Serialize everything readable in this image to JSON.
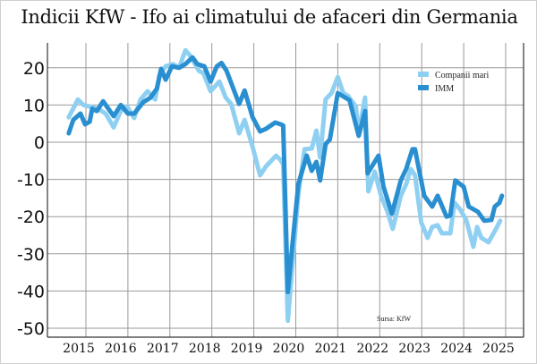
{
  "chart_data": {
    "type": "line",
    "title": "Indicii KfW - Ifo ai climatului de afaceri din Germania",
    "xlabel": "",
    "ylabel": "",
    "xlim": [
      2014.3,
      2025.4
    ],
    "ylim": [
      -52,
      27
    ],
    "x_ticks": [
      2015,
      2016,
      2017,
      2018,
      2019,
      2020,
      2021,
      2022,
      2023,
      2024,
      2025
    ],
    "x_tick_labels": [
      "2015",
      "2016",
      "2017",
      "2018",
      "2019",
      "2020",
      "2021",
      "2022",
      "2023",
      "2024",
      "2025"
    ],
    "y_ticks": [
      20,
      10,
      0,
      -10,
      -20,
      -30,
      -40,
      -50
    ],
    "y_tick_labels": [
      "20",
      "10",
      "0",
      "-10",
      "-20",
      "-30",
      "-40",
      "-50"
    ],
    "grid": true,
    "legend_position": "top-right",
    "source": "Sursa: KfW",
    "series": [
      {
        "name": "Companii mari",
        "color": "#8fd0f2",
        "points": [
          [
            2014.59,
            6.7
          ],
          [
            2014.81,
            11.5
          ],
          [
            2014.94,
            10
          ],
          [
            2015.09,
            9.6
          ],
          [
            2015.3,
            8.9
          ],
          [
            2015.47,
            7.7
          ],
          [
            2015.66,
            4
          ],
          [
            2015.83,
            8.4
          ],
          [
            2015.98,
            9.6
          ],
          [
            2016.15,
            6.5
          ],
          [
            2016.3,
            11.5
          ],
          [
            2016.47,
            13.7
          ],
          [
            2016.65,
            11.5
          ],
          [
            2016.75,
            18
          ],
          [
            2016.9,
            20.4
          ],
          [
            2017.07,
            21
          ],
          [
            2017.22,
            20
          ],
          [
            2017.37,
            24.7
          ],
          [
            2017.48,
            23.3
          ],
          [
            2017.69,
            19.2
          ],
          [
            2017.8,
            18.5
          ],
          [
            2017.97,
            13.7
          ],
          [
            2018.18,
            16.3
          ],
          [
            2018.33,
            12
          ],
          [
            2018.46,
            10.3
          ],
          [
            2018.65,
            2.4
          ],
          [
            2018.78,
            6
          ],
          [
            2018.97,
            -1.2
          ],
          [
            2019.15,
            -8.9
          ],
          [
            2019.29,
            -6.5
          ],
          [
            2019.53,
            -3.6
          ],
          [
            2019.64,
            -4.8
          ],
          [
            2019.7,
            -6
          ],
          [
            2019.81,
            -48
          ],
          [
            2020.06,
            -14
          ],
          [
            2020.21,
            -1.9
          ],
          [
            2020.38,
            -1.7
          ],
          [
            2020.49,
            3.1
          ],
          [
            2020.58,
            -4.1
          ],
          [
            2020.71,
            11.5
          ],
          [
            2020.85,
            13.2
          ],
          [
            2021.0,
            17.5
          ],
          [
            2021.13,
            13.2
          ],
          [
            2021.24,
            12.5
          ],
          [
            2021.43,
            9.6
          ],
          [
            2021.5,
            2.4
          ],
          [
            2021.65,
            12
          ],
          [
            2021.73,
            -13.2
          ],
          [
            2021.88,
            -7.9
          ],
          [
            2022.03,
            -14.4
          ],
          [
            2022.18,
            -18.5
          ],
          [
            2022.31,
            -23.3
          ],
          [
            2022.5,
            -14.4
          ],
          [
            2022.63,
            -11.3
          ],
          [
            2022.74,
            -7.2
          ],
          [
            2022.84,
            -8.9
          ],
          [
            2022.99,
            -21.6
          ],
          [
            2023.14,
            -25.7
          ],
          [
            2023.25,
            -22.8
          ],
          [
            2023.38,
            -22.3
          ],
          [
            2023.48,
            -24.5
          ],
          [
            2023.68,
            -24.5
          ],
          [
            2023.78,
            -16.3
          ],
          [
            2023.91,
            -18
          ],
          [
            2024.06,
            -20.9
          ],
          [
            2024.23,
            -28.1
          ],
          [
            2024.32,
            -22.8
          ],
          [
            2024.42,
            -25.7
          ],
          [
            2024.59,
            -26.9
          ],
          [
            2024.76,
            -23.5
          ],
          [
            2024.87,
            -21.1
          ]
        ]
      },
      {
        "name": "IMM",
        "color": "#2a8fd0",
        "points": [
          [
            2014.59,
            2.4
          ],
          [
            2014.7,
            6
          ],
          [
            2014.87,
            7.7
          ],
          [
            2014.98,
            4.8
          ],
          [
            2015.09,
            5.5
          ],
          [
            2015.15,
            9
          ],
          [
            2015.26,
            8.4
          ],
          [
            2015.41,
            11
          ],
          [
            2015.66,
            7
          ],
          [
            2015.83,
            10
          ],
          [
            2016.0,
            7.7
          ],
          [
            2016.15,
            7.7
          ],
          [
            2016.37,
            10.8
          ],
          [
            2016.54,
            12
          ],
          [
            2016.69,
            14.4
          ],
          [
            2016.79,
            19.7
          ],
          [
            2016.9,
            16.8
          ],
          [
            2017.05,
            20.4
          ],
          [
            2017.22,
            20
          ],
          [
            2017.37,
            21
          ],
          [
            2017.54,
            22.8
          ],
          [
            2017.65,
            21
          ],
          [
            2017.82,
            20.4
          ],
          [
            2017.97,
            16.3
          ],
          [
            2018.12,
            20.4
          ],
          [
            2018.23,
            21.3
          ],
          [
            2018.35,
            19.2
          ],
          [
            2018.65,
            10.3
          ],
          [
            2018.78,
            13.9
          ],
          [
            2018.97,
            6.7
          ],
          [
            2019.15,
            2.9
          ],
          [
            2019.29,
            3.6
          ],
          [
            2019.51,
            5.3
          ],
          [
            2019.64,
            4.8
          ],
          [
            2019.7,
            4.5
          ],
          [
            2019.81,
            -40.3
          ],
          [
            2020.06,
            -11.3
          ],
          [
            2020.26,
            -3.6
          ],
          [
            2020.38,
            -7.7
          ],
          [
            2020.49,
            -5.3
          ],
          [
            2020.58,
            -10.3
          ],
          [
            2020.71,
            -0.5
          ],
          [
            2020.81,
            0.7
          ],
          [
            2021.0,
            13.2
          ],
          [
            2021.28,
            11.3
          ],
          [
            2021.5,
            1.7
          ],
          [
            2021.65,
            8.4
          ],
          [
            2021.71,
            -8.4
          ],
          [
            2021.97,
            -3.6
          ],
          [
            2022.09,
            -12
          ],
          [
            2022.29,
            -19.2
          ],
          [
            2022.5,
            -10.3
          ],
          [
            2022.63,
            -7.2
          ],
          [
            2022.78,
            -1.9
          ],
          [
            2022.84,
            -1.9
          ],
          [
            2023.06,
            -14.4
          ],
          [
            2023.25,
            -17.3
          ],
          [
            2023.38,
            -14.4
          ],
          [
            2023.59,
            -20
          ],
          [
            2023.68,
            -19.7
          ],
          [
            2023.8,
            -10.3
          ],
          [
            2024.0,
            -12
          ],
          [
            2024.12,
            -17.3
          ],
          [
            2024.34,
            -18.7
          ],
          [
            2024.49,
            -21.1
          ],
          [
            2024.66,
            -20.9
          ],
          [
            2024.74,
            -17.3
          ],
          [
            2024.85,
            -16.3
          ],
          [
            2024.91,
            -14.4
          ]
        ]
      }
    ]
  }
}
